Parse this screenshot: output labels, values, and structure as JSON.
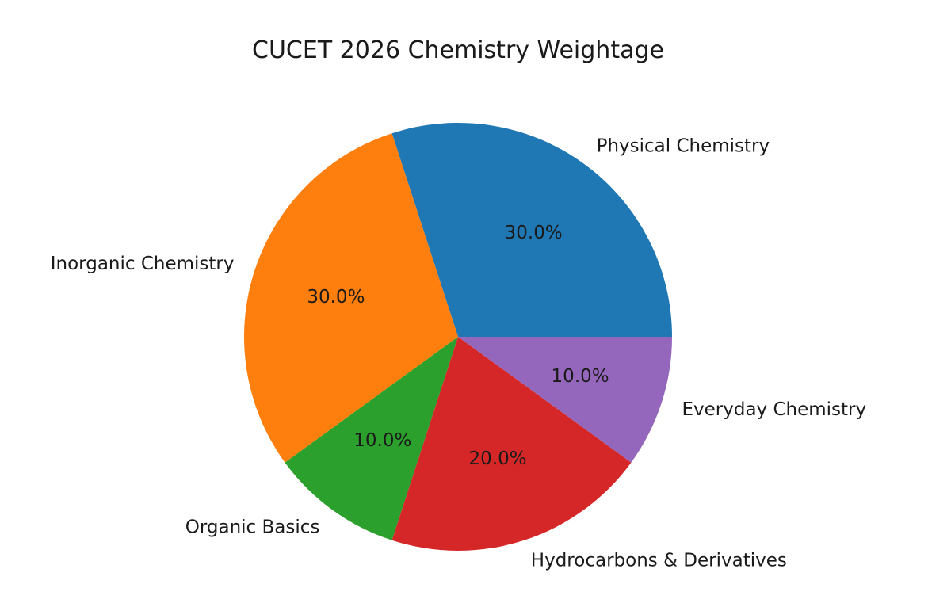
{
  "chart_data": {
    "type": "pie",
    "title": "CUCET 2026 Chemistry Weightage",
    "start_angle_deg": 0,
    "direction": "counterclockwise",
    "slices": [
      {
        "label": "Physical Chemistry",
        "value": 30.0,
        "pct_label": "30.0%",
        "color": "#1f77b4"
      },
      {
        "label": "Inorganic Chemistry",
        "value": 30.0,
        "pct_label": "30.0%",
        "color": "#ff7f0e"
      },
      {
        "label": "Organic Basics",
        "value": 10.0,
        "pct_label": "10.0%",
        "color": "#2ca02c"
      },
      {
        "label": "Hydrocarbons & Derivatives",
        "value": 20.0,
        "pct_label": "20.0%",
        "color": "#d62728"
      },
      {
        "label": "Everyday Chemistry",
        "value": 10.0,
        "pct_label": "10.0%",
        "color": "#9467bd"
      }
    ]
  }
}
